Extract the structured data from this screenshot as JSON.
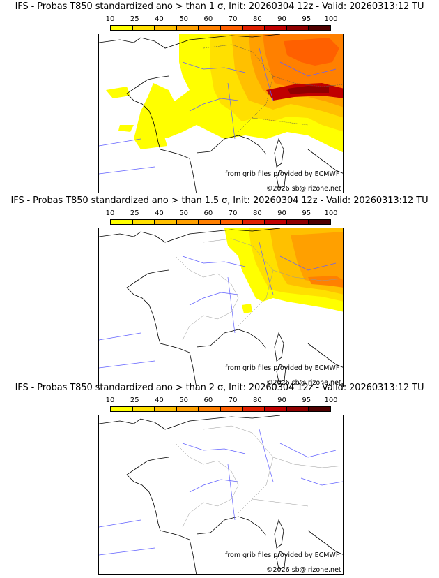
{
  "colorbar": {
    "ticks": [
      "10",
      "25",
      "40",
      "50",
      "60",
      "70",
      "80",
      "90",
      "95",
      "100"
    ],
    "colors": [
      "#ffff00",
      "#ffe000",
      "#ffc000",
      "#ffa000",
      "#ff8000",
      "#ff6000",
      "#e02000",
      "#c00000",
      "#900000",
      "#500000"
    ]
  },
  "panels": [
    {
      "title": "IFS - Probas T850  standardized ano > than 1 σ, Init: 20260304 12z - Valid: 20260313:12 TU",
      "credit_source": "from grib files provided by ECMWF",
      "credit_copy": "©2026 sb@irizone.net",
      "coverage": "extensive"
    },
    {
      "title": "IFS - Probas T850  standardized ano > than 1.5 σ, Init: 20260304 12z - Valid: 20260313:12 TU",
      "credit_source": "from grib files provided by ECMWF",
      "credit_copy": "©2026 sb@irizone.net",
      "coverage": "moderate"
    },
    {
      "title": "IFS - Probas T850  standardized ano > than 2 σ, Init: 20260304 12z - Valid: 20260313:12 TU",
      "credit_source": "from grib files provided by ECMWF",
      "credit_copy": "©2026 sb@irizone.net",
      "coverage": "none"
    }
  ]
}
